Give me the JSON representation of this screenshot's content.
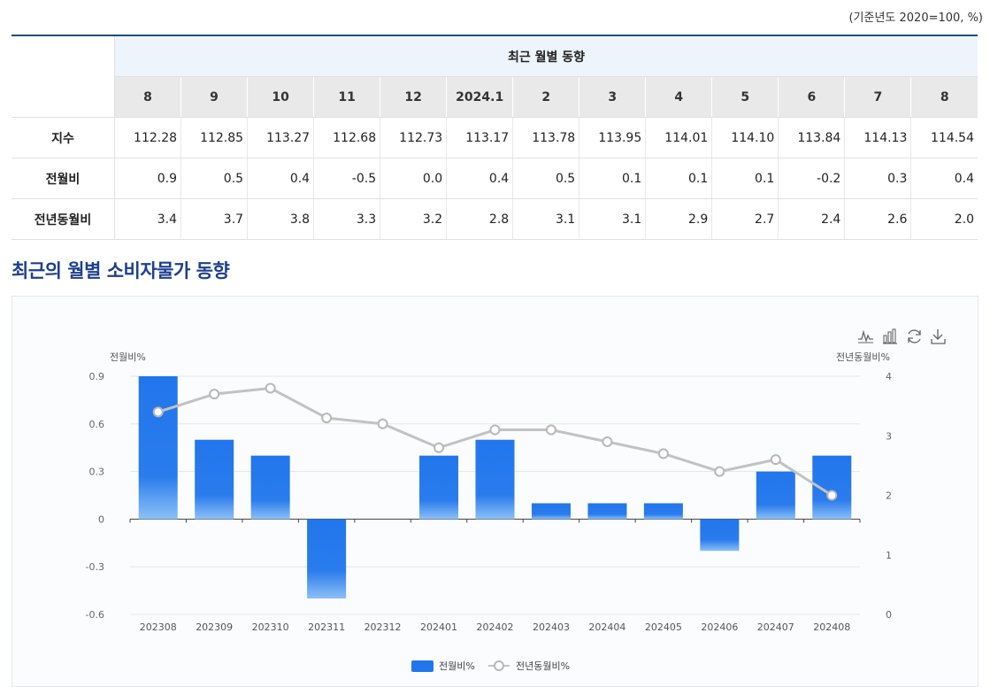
{
  "unit_note": "(기준년도 2020=100, %)",
  "table": {
    "group_header": "최근 월별 동향",
    "months": [
      "8",
      "9",
      "10",
      "11",
      "12",
      "2024.1",
      "2",
      "3",
      "4",
      "5",
      "6",
      "7",
      "8"
    ],
    "rows": [
      {
        "label": "지수",
        "values": [
          "112.28",
          "112.85",
          "113.27",
          "112.68",
          "112.73",
          "113.17",
          "113.78",
          "113.95",
          "114.01",
          "114.10",
          "113.84",
          "114.13",
          "114.54"
        ]
      },
      {
        "label": "전월비",
        "values": [
          "0.9",
          "0.5",
          "0.4",
          "-0.5",
          "0.0",
          "0.4",
          "0.5",
          "0.1",
          "0.1",
          "0.1",
          "-0.2",
          "0.3",
          "0.4"
        ]
      },
      {
        "label": "전년동월비",
        "values": [
          "3.4",
          "3.7",
          "3.8",
          "3.3",
          "3.2",
          "2.8",
          "3.1",
          "3.1",
          "2.9",
          "2.7",
          "2.4",
          "2.6",
          "2.0"
        ]
      }
    ]
  },
  "section_title": "최근의 월별 소비자물가 동향",
  "toolbar_icons": [
    "line-chart-icon",
    "bar-chart-icon",
    "refresh-icon",
    "download-icon"
  ],
  "colors": {
    "bar": "#2276ec",
    "bar_light": "#7ab6f5",
    "line": "#c2c2c2",
    "title": "#1d3f8f",
    "header_border": "#1d4f78"
  },
  "chart_data": {
    "type": "bar",
    "categories": [
      "202308",
      "202309",
      "202310",
      "202311",
      "202312",
      "202401",
      "202402",
      "202403",
      "202404",
      "202405",
      "202406",
      "202407",
      "202408"
    ],
    "series": [
      {
        "name": "전월비%",
        "type": "bar",
        "axis": "left",
        "values": [
          0.9,
          0.5,
          0.4,
          -0.5,
          0.0,
          0.4,
          0.5,
          0.1,
          0.1,
          0.1,
          -0.2,
          0.3,
          0.4
        ]
      },
      {
        "name": "전년동월비%",
        "type": "line",
        "axis": "right",
        "values": [
          3.4,
          3.7,
          3.8,
          3.3,
          3.2,
          2.8,
          3.1,
          3.1,
          2.9,
          2.7,
          2.4,
          2.6,
          2.0
        ]
      }
    ],
    "y_left": {
      "label": "전월비%",
      "range": [
        -0.6,
        0.9
      ],
      "ticks": [
        "0.9",
        "0.6",
        "0.3",
        "0",
        "-0.3",
        "-0.6"
      ]
    },
    "y_right": {
      "label": "전년동월비%",
      "range": [
        0,
        4
      ],
      "ticks": [
        "4",
        "3",
        "2",
        "1",
        "0"
      ]
    },
    "legend": [
      "전월비%",
      "전년동월비%"
    ],
    "legend_position": "bottom-center"
  }
}
